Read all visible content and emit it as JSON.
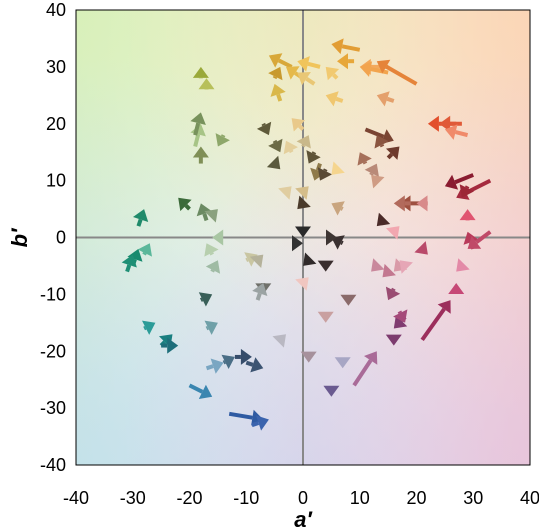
{
  "chart_data": {
    "type": "scatter",
    "title": "",
    "xlabel": "a′",
    "ylabel": "b′",
    "xlim": [
      -40,
      40
    ],
    "ylim": [
      -40,
      40
    ],
    "x_ticks": [
      "-40",
      "-30",
      "-20",
      "-10",
      "0",
      "10",
      "20",
      "30",
      "40"
    ],
    "y_ticks": [
      "-40",
      "-30",
      "-20",
      "-10",
      "0",
      "10",
      "20",
      "30",
      "40"
    ],
    "grid": false,
    "zero_lines": true,
    "background": "chromaticity gradient (green top-left, orange top-right, blue bottom-left, purple bottom-right)",
    "series": [
      {
        "marker": "arrow",
        "points": [
          {
            "x0": -18,
            "y0": 28,
            "x1": -18,
            "y1": 30,
            "color": "#9aa93a"
          },
          {
            "x0": -17,
            "y0": 26,
            "x1": -17,
            "y1": 28,
            "color": "#b7c05a"
          },
          {
            "x0": -19,
            "y0": 16,
            "x1": -18,
            "y1": 20,
            "color": "#a7c486"
          },
          {
            "x0": -18,
            "y0": 13,
            "x1": -18,
            "y1": 16,
            "color": "#7f8f56"
          },
          {
            "x0": -19,
            "y0": 18,
            "x1": -18,
            "y1": 22,
            "color": "#78925c"
          },
          {
            "x0": -14,
            "y0": 18,
            "x1": -15,
            "y1": 16,
            "color": "#8ea76a"
          },
          {
            "x0": -20,
            "y0": 5,
            "x1": -22,
            "y1": 7,
            "color": "#3c6b3a"
          },
          {
            "x0": -17,
            "y0": 3,
            "x1": -18,
            "y1": 6,
            "color": "#6b8a62"
          },
          {
            "x0": -16,
            "y0": 4,
            "x1": -15,
            "y1": 5,
            "color": "#8aa17e"
          },
          {
            "x0": -29,
            "y0": 2,
            "x1": -28,
            "y1": 5,
            "color": "#1f8a6a"
          },
          {
            "x0": -30,
            "y0": -5,
            "x1": -29,
            "y1": -2,
            "color": "#178a6e"
          },
          {
            "x0": -31,
            "y0": -6,
            "x1": -30,
            "y1": -3,
            "color": "#1e8f75"
          },
          {
            "x0": -28,
            "y0": -3,
            "x1": -27,
            "y1": -1,
            "color": "#5ab79a"
          },
          {
            "x0": -16,
            "y0": -3,
            "x1": -17,
            "y1": -1,
            "color": "#b7cfae"
          },
          {
            "x0": -15,
            "y0": 0,
            "x1": -16,
            "y1": 0,
            "color": "#a9c6a3"
          },
          {
            "x0": -16,
            "y0": -6,
            "x1": -15,
            "y1": -4,
            "color": "#9fbba4"
          },
          {
            "x0": -18,
            "y0": -11,
            "x1": -16,
            "y1": -10,
            "color": "#385f58"
          },
          {
            "x0": -28,
            "y0": -16,
            "x1": -26,
            "y1": -15,
            "color": "#2b9c98"
          },
          {
            "x0": -25,
            "y0": -19,
            "x1": -23,
            "y1": -17,
            "color": "#197f80"
          },
          {
            "x0": -25,
            "y0": -19,
            "x1": -22,
            "y1": -19,
            "color": "#1e6e7a"
          },
          {
            "x0": -17,
            "y0": -16,
            "x1": -15,
            "y1": -15,
            "color": "#6fa0a8"
          },
          {
            "x0": -17,
            "y0": -23,
            "x1": -14,
            "y1": -22,
            "color": "#7aa6c2"
          },
          {
            "x0": -14,
            "y0": -22,
            "x1": -12,
            "y1": -21,
            "color": "#4a6e86"
          },
          {
            "x0": -12,
            "y0": -21,
            "x1": -9,
            "y1": -21,
            "color": "#354c6a"
          },
          {
            "x0": -10,
            "y0": -22,
            "x1": -7,
            "y1": -23,
            "color": "#3c5472"
          },
          {
            "x0": -20,
            "y0": -26,
            "x1": -16,
            "y1": -28,
            "color": "#3a86b0"
          },
          {
            "x0": -13,
            "y0": -31,
            "x1": -7,
            "y1": -32,
            "color": "#2e5aa2"
          },
          {
            "x0": -9,
            "y0": -33,
            "x1": -6,
            "y1": -32,
            "color": "#3a63ad"
          },
          {
            "x0": -10,
            "y0": -4,
            "x1": -8,
            "y1": -3,
            "color": "#c9c6a2"
          },
          {
            "x0": -8,
            "y0": -4,
            "x1": -7,
            "y1": -3,
            "color": "#b5b29b"
          },
          {
            "x0": -7,
            "y0": -8,
            "x1": -7,
            "y1": -10,
            "color": "#6f706a"
          },
          {
            "x0": -8,
            "y0": -11,
            "x1": -7,
            "y1": -8,
            "color": "#9ba3a3"
          },
          {
            "x0": -4,
            "y0": -18,
            "x1": -3,
            "y1": -17,
            "color": "#b9b8c2"
          },
          {
            "x0": -7,
            "y0": 20,
            "x1": -6,
            "y1": 18,
            "color": "#5f5a3a"
          },
          {
            "x0": -5,
            "y0": 17,
            "x1": -4,
            "y1": 15,
            "color": "#6b6a45"
          },
          {
            "x0": -5,
            "y0": 13,
            "x1": -4,
            "y1": 12,
            "color": "#5b5a3d"
          },
          {
            "x0": -4,
            "y0": 24,
            "x1": -5,
            "y1": 27,
            "color": "#d9b84a"
          },
          {
            "x0": -2,
            "y0": 30,
            "x1": -6,
            "y1": 32,
            "color": "#d8a83a"
          },
          {
            "x0": -5,
            "y0": 28,
            "x1": -4,
            "y1": 30,
            "color": "#c89a2e"
          },
          {
            "x0": 0,
            "y0": 28,
            "x1": -3,
            "y1": 30,
            "color": "#e5b94a"
          },
          {
            "x0": 3,
            "y0": 30,
            "x1": -1,
            "y1": 31,
            "color": "#f0c45c"
          },
          {
            "x0": 2,
            "y0": 27,
            "x1": -1,
            "y1": 29,
            "color": "#e9c775"
          },
          {
            "x0": 6,
            "y0": 28,
            "x1": 4,
            "y1": 30,
            "color": "#f1c970"
          },
          {
            "x0": 9,
            "y0": 31,
            "x1": 6,
            "y1": 31,
            "color": "#e7a73a"
          },
          {
            "x0": 10,
            "y0": 33,
            "x1": 5,
            "y1": 34,
            "color": "#e29d34"
          },
          {
            "x0": 7,
            "y0": 24,
            "x1": 4,
            "y1": 25,
            "color": "#f0c76f"
          },
          {
            "x0": 15,
            "y0": 30,
            "x1": 10,
            "y1": 30,
            "color": "#f3a95c"
          },
          {
            "x0": 15,
            "y0": 29,
            "x1": 10,
            "y1": 30,
            "color": "#f2a44e"
          },
          {
            "x0": 20,
            "y0": 27,
            "x1": 13,
            "y1": 31,
            "color": "#e5843a"
          },
          {
            "x0": 16,
            "y0": 24,
            "x1": 13,
            "y1": 25,
            "color": "#e4a06c"
          },
          {
            "x0": 0,
            "y0": 19,
            "x1": -2,
            "y1": 21,
            "color": "#e9c98a"
          },
          {
            "x0": 0,
            "y0": 16,
            "x1": 1,
            "y1": 18,
            "color": "#c9b88a"
          },
          {
            "x0": -2,
            "y0": 15,
            "x1": -3,
            "y1": 17,
            "color": "#e4cf9c"
          },
          {
            "x0": 2,
            "y0": 15,
            "x1": 1,
            "y1": 13,
            "color": "#5f5438"
          },
          {
            "x0": 3,
            "y0": 13,
            "x1": 2,
            "y1": 10,
            "color": "#8f7a4a"
          },
          {
            "x0": 4,
            "y0": 12,
            "x1": 3,
            "y1": 10,
            "color": "#5a4a35"
          },
          {
            "x0": 6,
            "y0": 12,
            "x1": 5,
            "y1": 11,
            "color": "#f5d58e"
          },
          {
            "x0": -3,
            "y0": 8,
            "x1": -2,
            "y1": 9,
            "color": "#e0cda0"
          },
          {
            "x0": 0,
            "y0": 8,
            "x1": 1,
            "y1": 9,
            "color": "#d4bd8a"
          },
          {
            "x0": 0,
            "y0": 6,
            "x1": -1,
            "y1": 5,
            "color": "#4b3b2b"
          },
          {
            "x0": 7,
            "y0": 5,
            "x1": 5,
            "y1": 6,
            "color": "#c9a57f"
          },
          {
            "x0": 11,
            "y0": 19,
            "x1": 16,
            "y1": 17,
            "color": "#7a4432"
          },
          {
            "x0": 14,
            "y0": 16,
            "x1": 13,
            "y1": 18,
            "color": "#8b5540"
          },
          {
            "x0": 15,
            "y0": 14,
            "x1": 17,
            "y1": 16,
            "color": "#6e3a2c"
          },
          {
            "x0": 11,
            "y0": 13,
            "x1": 10,
            "y1": 15,
            "color": "#a6705a"
          },
          {
            "x0": 12,
            "y0": 11,
            "x1": 13,
            "y1": 13,
            "color": "#b98a78"
          },
          {
            "x0": 13,
            "y0": 10,
            "x1": 12,
            "y1": 11,
            "color": "#cf9c84"
          },
          {
            "x0": 27,
            "y0": 20,
            "x1": 22,
            "y1": 20,
            "color": "#e24f2c"
          },
          {
            "x0": 28,
            "y0": 20,
            "x1": 24,
            "y1": 20,
            "color": "#e05a38"
          },
          {
            "x0": 29,
            "y0": 18,
            "x1": 25,
            "y1": 19,
            "color": "#f08a6a"
          },
          {
            "x0": 30,
            "y0": 11,
            "x1": 25,
            "y1": 9,
            "color": "#8a1c30"
          },
          {
            "x0": 33,
            "y0": 10,
            "x1": 27,
            "y1": 7,
            "color": "#a52a3e"
          },
          {
            "x0": 29,
            "y0": 9,
            "x1": 28,
            "y1": 7,
            "color": "#9c2636"
          },
          {
            "x0": 29,
            "y0": 3,
            "x1": 29,
            "y1": 5,
            "color": "#e05470"
          },
          {
            "x0": 30,
            "y0": -2,
            "x1": 29,
            "y1": 1,
            "color": "#b83a5a"
          },
          {
            "x0": 33,
            "y0": 1,
            "x1": 29,
            "y1": -2,
            "color": "#c04a68"
          },
          {
            "x0": 21,
            "y0": 6,
            "x1": 17,
            "y1": 6,
            "color": "#9e5040"
          },
          {
            "x0": 19,
            "y0": 6,
            "x1": 16,
            "y1": 6,
            "color": "#b26a5c"
          },
          {
            "x0": 22,
            "y0": 6,
            "x1": 20,
            "y1": 6,
            "color": "#d88a8a"
          },
          {
            "x0": 14,
            "y0": 3,
            "x1": 13,
            "y1": 2,
            "color": "#4a2a28"
          },
          {
            "x0": 16,
            "y0": 1,
            "x1": 17,
            "y1": 2,
            "color": "#f2a7b0"
          },
          {
            "x0": 7,
            "y0": -1,
            "x1": 5,
            "y1": 0,
            "color": "#3a3030"
          },
          {
            "x0": 5,
            "y0": 0,
            "x1": 6,
            "y1": 0,
            "color": "#3e3533"
          },
          {
            "x0": 0,
            "y0": 0,
            "x1": 0,
            "y1": 0,
            "color": "#2a2a2a"
          },
          {
            "x0": -1,
            "y0": -1,
            "x1": 0,
            "y1": -1,
            "color": "#333"
          },
          {
            "x0": 1,
            "y0": -4,
            "x1": 0,
            "y1": -5,
            "color": "#302a2a"
          },
          {
            "x0": 0,
            "y0": -8,
            "x1": 1,
            "y1": -7,
            "color": "#f0c6c0"
          },
          {
            "x0": 4,
            "y0": -6,
            "x1": 4,
            "y1": -6,
            "color": "#3a2e2e"
          },
          {
            "x0": 8,
            "y0": -12,
            "x1": 8,
            "y1": -12,
            "color": "#8a6a6a"
          },
          {
            "x0": 4,
            "y0": -15,
            "x1": 4,
            "y1": -15,
            "color": "#c9a0a0"
          },
          {
            "x0": 1,
            "y0": -22,
            "x1": 1,
            "y1": -22,
            "color": "#a6919c"
          },
          {
            "x0": 7,
            "y0": -23,
            "x1": 7,
            "y1": -23,
            "color": "#a7a6c4"
          },
          {
            "x0": 9,
            "y0": -26,
            "x1": 13,
            "y1": -20,
            "color": "#a96b98"
          },
          {
            "x0": 5,
            "y0": -28,
            "x1": 5,
            "y1": -28,
            "color": "#6a5a90"
          },
          {
            "x0": 16,
            "y0": -19,
            "x1": 16,
            "y1": -19,
            "color": "#7c3b6e"
          },
          {
            "x0": 18,
            "y0": -14,
            "x1": 16,
            "y1": -16,
            "color": "#803b70"
          },
          {
            "x0": 17,
            "y0": -13,
            "x1": 18,
            "y1": -15,
            "color": "#a54a7a"
          },
          {
            "x0": 16,
            "y0": -9,
            "x1": 15,
            "y1": -11,
            "color": "#9a4c72"
          },
          {
            "x0": 15,
            "y0": -6,
            "x1": 14,
            "y1": -7,
            "color": "#c37890"
          },
          {
            "x0": 17,
            "y0": -5,
            "x1": 16,
            "y1": -6,
            "color": "#d99aa8"
          },
          {
            "x0": 18,
            "y0": -5,
            "x1": 17,
            "y1": -4,
            "color": "#e6a6b6"
          },
          {
            "x0": 21,
            "y0": -2,
            "x1": 22,
            "y1": -3,
            "color": "#b94a6a"
          },
          {
            "x0": 21,
            "y0": -18,
            "x1": 26,
            "y1": -11,
            "color": "#9c2e5c"
          },
          {
            "x0": 27,
            "y0": -9,
            "x1": 27,
            "y1": -8,
            "color": "#c64876"
          },
          {
            "x0": 28,
            "y0": -5,
            "x1": 27,
            "y1": -6,
            "color": "#e389a7"
          },
          {
            "x0": 13,
            "y0": -5,
            "x1": 12,
            "y1": -6,
            "color": "#c9889c"
          }
        ]
      }
    ]
  }
}
